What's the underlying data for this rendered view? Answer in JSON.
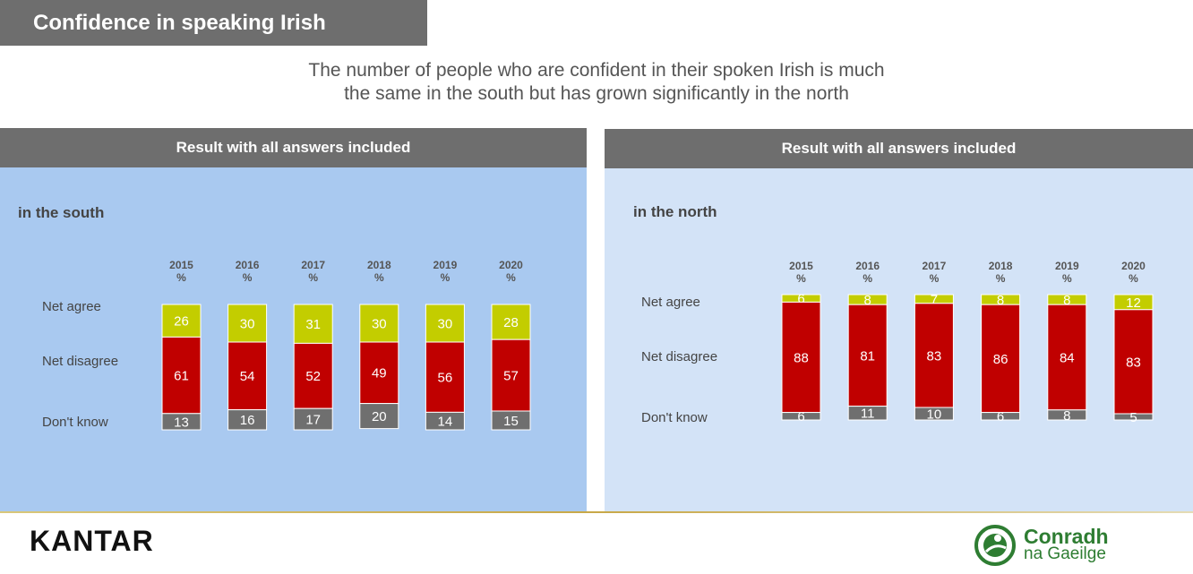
{
  "title": "Confidence in speaking Irish",
  "subtitle_lines": [
    "The number of people who are confident in their spoken Irish is much",
    "the same in the south but has grown significantly in the north"
  ],
  "colors": {
    "agree": "#c3cd00",
    "disagree": "#c00000",
    "dont_know": "#6f6f6f",
    "south_bg": "#a9c9f0",
    "north_bg": "#d3e3f7",
    "header_bg": "#6e6e6e"
  },
  "footer": {
    "kantar_logo": "KANTAR",
    "conradh_logo_line1": "Conradh",
    "conradh_logo_line2": "na Gaeilge"
  },
  "chart_data": [
    {
      "type": "bar",
      "stacked": true,
      "panel_title": "Result with all answers included",
      "region_label": "in the south",
      "categories": [
        "2015",
        "2016",
        "2017",
        "2018",
        "2019",
        "2020"
      ],
      "unit_label": "%",
      "row_labels": [
        "Net agree",
        "Net disagree",
        "Don't know"
      ],
      "series": [
        {
          "name": "Net agree",
          "values": [
            26,
            30,
            31,
            30,
            30,
            28
          ]
        },
        {
          "name": "Net disagree",
          "values": [
            61,
            54,
            52,
            49,
            56,
            57
          ]
        },
        {
          "name": "Don't know",
          "values": [
            13,
            16,
            17,
            20,
            14,
            15
          ]
        }
      ],
      "ylim": [
        0,
        100
      ]
    },
    {
      "type": "bar",
      "stacked": true,
      "panel_title": "Result with all answers included",
      "region_label": "in the north",
      "categories": [
        "2015",
        "2016",
        "2017",
        "2018",
        "2019",
        "2020"
      ],
      "unit_label": "%",
      "row_labels": [
        "Net agree",
        "Net disagree",
        "Don't know"
      ],
      "series": [
        {
          "name": "Net agree",
          "values": [
            6,
            8,
            7,
            8,
            8,
            12
          ]
        },
        {
          "name": "Net disagree",
          "values": [
            88,
            81,
            83,
            86,
            84,
            83
          ]
        },
        {
          "name": "Don't know",
          "values": [
            6,
            11,
            10,
            6,
            8,
            5
          ]
        }
      ],
      "ylim": [
        0,
        100
      ]
    }
  ]
}
